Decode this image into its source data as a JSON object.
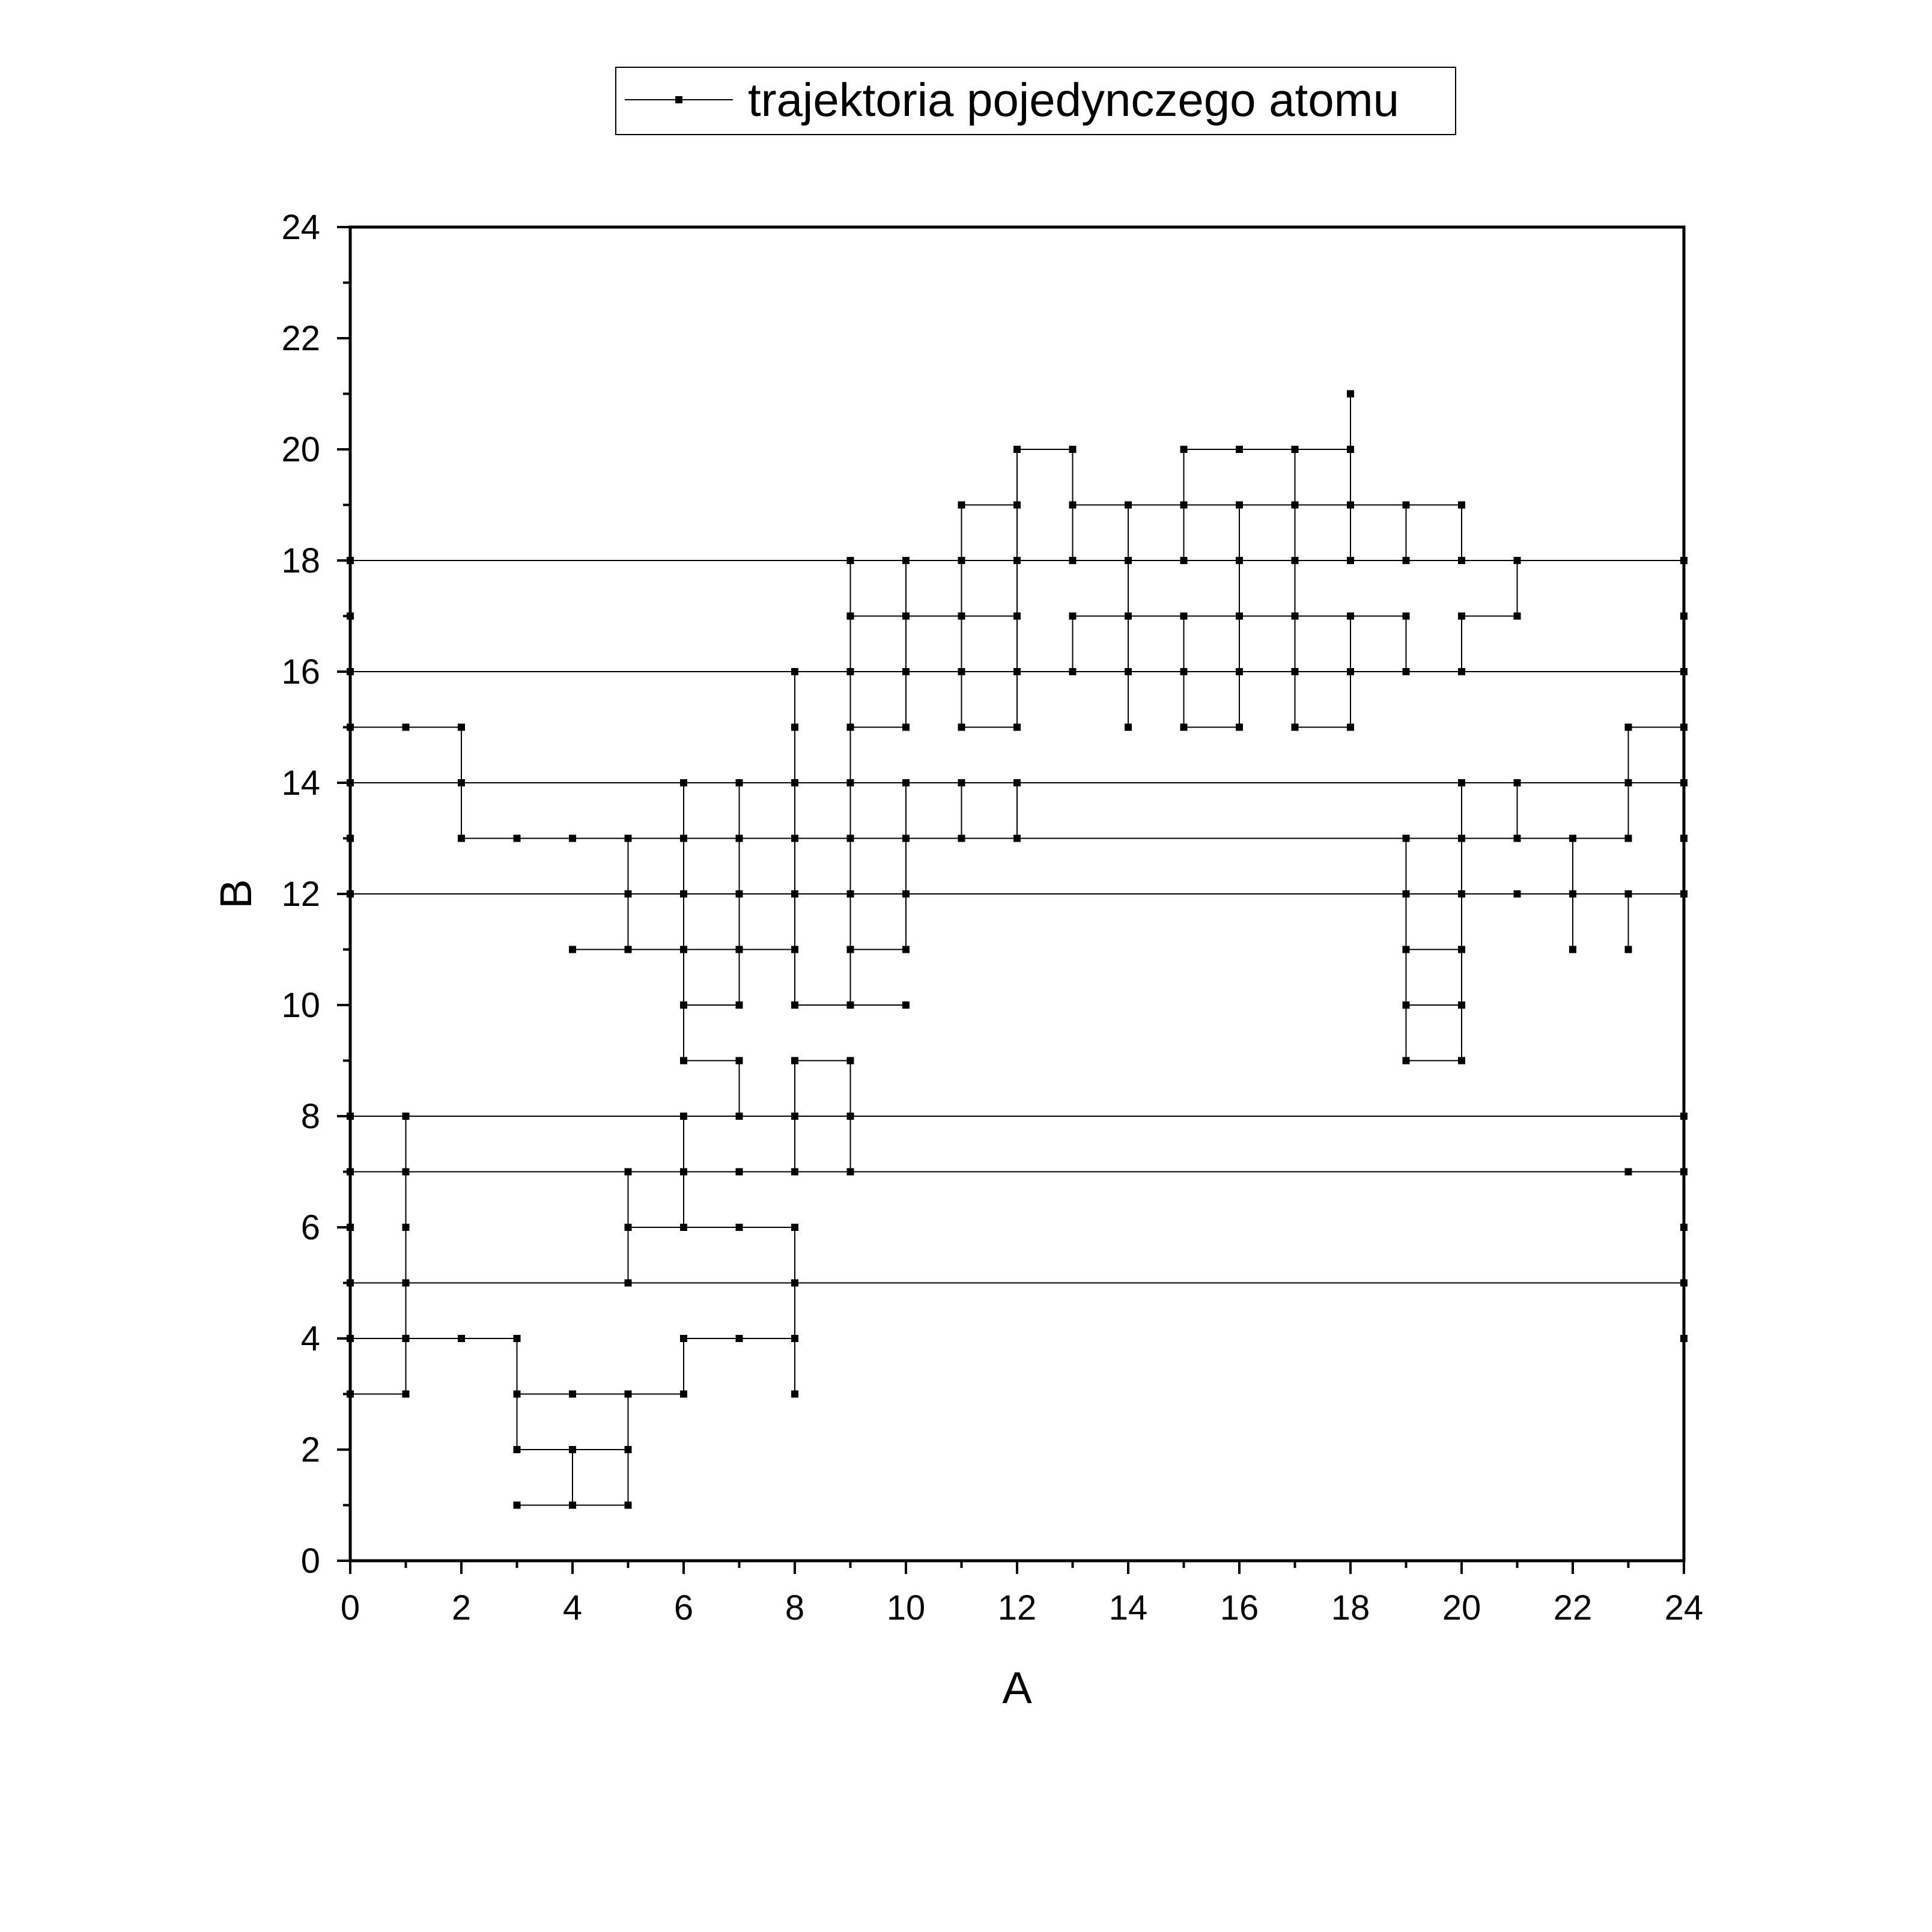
{
  "chart_data": {
    "type": "line",
    "title": "",
    "xlabel": "A",
    "ylabel": "B",
    "xlim": [
      0,
      24
    ],
    "ylim": [
      0,
      24
    ],
    "xticks": [
      "0",
      "2",
      "4",
      "6",
      "8",
      "10",
      "12",
      "14",
      "16",
      "18",
      "20",
      "22",
      "24"
    ],
    "yticks": [
      "0",
      "2",
      "4",
      "6",
      "8",
      "10",
      "12",
      "14",
      "16",
      "18",
      "20",
      "22",
      "24"
    ],
    "grid": false,
    "legend_position": "top",
    "series": [
      {
        "name": "trajektoria pojedynczego atomu",
        "color": "#000000",
        "marker": "square",
        "points": [
          [
            3,
            1
          ],
          [
            4,
            1
          ],
          [
            4,
            2
          ],
          [
            3,
            2
          ],
          [
            3,
            3
          ],
          [
            4,
            3
          ],
          [
            5,
            3
          ],
          [
            5,
            2
          ],
          [
            4,
            2
          ],
          [
            4,
            1
          ],
          [
            5,
            1
          ],
          [
            5,
            2
          ],
          [
            5,
            3
          ],
          [
            6,
            3
          ],
          [
            6,
            4
          ],
          [
            7,
            4
          ],
          [
            8,
            4
          ],
          [
            8,
            3
          ],
          [
            8,
            4
          ],
          [
            8,
            5
          ],
          [
            8,
            6
          ],
          [
            7,
            6
          ],
          [
            6,
            6
          ],
          [
            5,
            6
          ],
          [
            5,
            7
          ],
          [
            5,
            6
          ],
          [
            5,
            5
          ],
          [
            24,
            5
          ],
          [
            24,
            4
          ],
          [
            24,
            5
          ],
          [
            0,
            5
          ],
          [
            0,
            4
          ],
          [
            1,
            4
          ],
          [
            2,
            4
          ],
          [
            3,
            4
          ],
          [
            3,
            3
          ],
          [
            3,
            4
          ],
          [
            2,
            4
          ],
          [
            1,
            4
          ],
          [
            1,
            3
          ],
          [
            0,
            3
          ],
          [
            0,
            4
          ],
          [
            1,
            4
          ],
          [
            1,
            5
          ],
          [
            1,
            6
          ],
          [
            1,
            7
          ],
          [
            0,
            7
          ],
          [
            0,
            6
          ],
          [
            0,
            7
          ],
          [
            1,
            7
          ],
          [
            1,
            8
          ],
          [
            0,
            8
          ],
          [
            24,
            8
          ],
          [
            24,
            7
          ],
          [
            23,
            7
          ],
          [
            24,
            7
          ],
          [
            24,
            6
          ],
          [
            24,
            7
          ],
          [
            0,
            7
          ],
          [
            24,
            7
          ],
          [
            9,
            7
          ],
          [
            9,
            8
          ],
          [
            8,
            8
          ],
          [
            8,
            7
          ],
          [
            7,
            7
          ],
          [
            6,
            7
          ],
          [
            6,
            8
          ],
          [
            6,
            7
          ],
          [
            6,
            6
          ],
          [
            6,
            7
          ],
          [
            9,
            7
          ],
          [
            9,
            8
          ],
          [
            9,
            9
          ],
          [
            8,
            9
          ],
          [
            8,
            8
          ],
          [
            7,
            8
          ],
          [
            7,
            9
          ],
          [
            6,
            9
          ],
          [
            6,
            10
          ],
          [
            6,
            11
          ],
          [
            5,
            11
          ],
          [
            4,
            11
          ],
          [
            5,
            11
          ],
          [
            5,
            12
          ],
          [
            5,
            13
          ],
          [
            4,
            13
          ],
          [
            3,
            13
          ],
          [
            2,
            13
          ],
          [
            2,
            14
          ],
          [
            2,
            15
          ],
          [
            1,
            15
          ],
          [
            0,
            15
          ],
          [
            0,
            14
          ],
          [
            0,
            13
          ],
          [
            0,
            12
          ],
          [
            24,
            12
          ],
          [
            24,
            13
          ],
          [
            24,
            12
          ],
          [
            23,
            12
          ],
          [
            23,
            11
          ],
          [
            23,
            12
          ],
          [
            22,
            12
          ],
          [
            22,
            11
          ],
          [
            22,
            12
          ],
          [
            22,
            13
          ],
          [
            21,
            13
          ],
          [
            20,
            13
          ],
          [
            20,
            12
          ],
          [
            21,
            12
          ],
          [
            20,
            12
          ],
          [
            20,
            11
          ],
          [
            20,
            10
          ],
          [
            20,
            9
          ],
          [
            19,
            9
          ],
          [
            19,
            10
          ],
          [
            20,
            10
          ],
          [
            19,
            10
          ],
          [
            19,
            11
          ],
          [
            20,
            11
          ],
          [
            19,
            11
          ],
          [
            19,
            12
          ],
          [
            19,
            13
          ],
          [
            12,
            13
          ],
          [
            11,
            13
          ],
          [
            11,
            14
          ],
          [
            12,
            14
          ],
          [
            12,
            13
          ],
          [
            12,
            14
          ],
          [
            11,
            14
          ],
          [
            10,
            14
          ],
          [
            10,
            13
          ],
          [
            10,
            12
          ],
          [
            10,
            11
          ],
          [
            9,
            11
          ],
          [
            9,
            10
          ],
          [
            10,
            10
          ],
          [
            9,
            10
          ],
          [
            8,
            10
          ],
          [
            8,
            11
          ],
          [
            7,
            11
          ],
          [
            7,
            10
          ],
          [
            6,
            10
          ],
          [
            7,
            10
          ],
          [
            7,
            11
          ],
          [
            6,
            11
          ],
          [
            6,
            12
          ],
          [
            6,
            13
          ],
          [
            6,
            14
          ],
          [
            7,
            14
          ],
          [
            7,
            13
          ],
          [
            7,
            12
          ],
          [
            7,
            11
          ],
          [
            8,
            11
          ],
          [
            8,
            12
          ],
          [
            7,
            12
          ],
          [
            8,
            12
          ],
          [
            8,
            13
          ],
          [
            8,
            14
          ],
          [
            8,
            15
          ],
          [
            8,
            16
          ],
          [
            9,
            16
          ],
          [
            9,
            15
          ],
          [
            10,
            15
          ],
          [
            10,
            16
          ],
          [
            10,
            17
          ],
          [
            11,
            17
          ],
          [
            11,
            18
          ],
          [
            11,
            19
          ],
          [
            12,
            19
          ],
          [
            12,
            20
          ],
          [
            13,
            20
          ],
          [
            13,
            19
          ],
          [
            14,
            19
          ],
          [
            14,
            18
          ],
          [
            15,
            18
          ],
          [
            15,
            19
          ],
          [
            15,
            20
          ],
          [
            16,
            20
          ],
          [
            17,
            20
          ],
          [
            18,
            20
          ],
          [
            18,
            21
          ],
          [
            18,
            20
          ],
          [
            18,
            19
          ],
          [
            19,
            19
          ],
          [
            20,
            19
          ],
          [
            20,
            18
          ],
          [
            21,
            18
          ],
          [
            21,
            17
          ],
          [
            20,
            17
          ],
          [
            20,
            16
          ],
          [
            19,
            16
          ],
          [
            19,
            17
          ],
          [
            18,
            17
          ],
          [
            18,
            16
          ],
          [
            18,
            15
          ],
          [
            17,
            15
          ],
          [
            17,
            16
          ],
          [
            17,
            17
          ],
          [
            16,
            17
          ],
          [
            16,
            16
          ],
          [
            16,
            15
          ],
          [
            15,
            15
          ],
          [
            15,
            16
          ],
          [
            15,
            17
          ],
          [
            14,
            17
          ],
          [
            14,
            16
          ],
          [
            14,
            15
          ],
          [
            14,
            16
          ],
          [
            13,
            16
          ],
          [
            13,
            17
          ],
          [
            14,
            17
          ],
          [
            14,
            18
          ],
          [
            13,
            18
          ],
          [
            13,
            19
          ],
          [
            14,
            19
          ],
          [
            15,
            19
          ],
          [
            16,
            19
          ],
          [
            16,
            18
          ],
          [
            16,
            17
          ],
          [
            17,
            17
          ],
          [
            17,
            18
          ],
          [
            17,
            19
          ],
          [
            17,
            20
          ],
          [
            17,
            19
          ],
          [
            18,
            19
          ],
          [
            18,
            18
          ],
          [
            19,
            18
          ],
          [
            19,
            19
          ],
          [
            19,
            18
          ],
          [
            20,
            18
          ],
          [
            24,
            18
          ],
          [
            24,
            17
          ],
          [
            24,
            18
          ],
          [
            0,
            18
          ],
          [
            0,
            17
          ],
          [
            0,
            18
          ],
          [
            10,
            18
          ],
          [
            10,
            17
          ],
          [
            9,
            17
          ],
          [
            9,
            18
          ],
          [
            9,
            17
          ],
          [
            9,
            16
          ],
          [
            9,
            15
          ],
          [
            9,
            14
          ],
          [
            9,
            13
          ],
          [
            9,
            12
          ],
          [
            9,
            11
          ],
          [
            9,
            12
          ],
          [
            10,
            12
          ],
          [
            9,
            12
          ],
          [
            9,
            13
          ],
          [
            10,
            13
          ],
          [
            9,
            13
          ],
          [
            8,
            13
          ],
          [
            7,
            13
          ],
          [
            6,
            13
          ],
          [
            5,
            13
          ],
          [
            6,
            13
          ],
          [
            6,
            12
          ],
          [
            5,
            12
          ],
          [
            6,
            12
          ],
          [
            7,
            12
          ],
          [
            8,
            12
          ],
          [
            8,
            13
          ],
          [
            8,
            14
          ],
          [
            9,
            14
          ],
          [
            10,
            14
          ],
          [
            10,
            13
          ],
          [
            12,
            13
          ],
          [
            19,
            13
          ],
          [
            20,
            13
          ],
          [
            20,
            14
          ],
          [
            21,
            14
          ],
          [
            21,
            13
          ],
          [
            23,
            13
          ],
          [
            23,
            14
          ],
          [
            23,
            15
          ],
          [
            24,
            15
          ],
          [
            24,
            14
          ],
          [
            24,
            16
          ],
          [
            24,
            14
          ],
          [
            0,
            14
          ],
          [
            0,
            16
          ],
          [
            24,
            16
          ],
          [
            12,
            16
          ],
          [
            12,
            17
          ],
          [
            11,
            17
          ],
          [
            11,
            16
          ],
          [
            11,
            15
          ],
          [
            12,
            15
          ],
          [
            12,
            16
          ],
          [
            12,
            18
          ],
          [
            12,
            17
          ],
          [
            11,
            17
          ],
          [
            10,
            17
          ],
          [
            10,
            16
          ],
          [
            9,
            16
          ],
          [
            8,
            16
          ],
          [
            11,
            16
          ],
          [
            12,
            16
          ],
          [
            13,
            16
          ],
          [
            16,
            16
          ],
          [
            15,
            16
          ],
          [
            17,
            16
          ],
          [
            18,
            16
          ],
          [
            19,
            16
          ],
          [
            20,
            16
          ],
          [
            16,
            16
          ],
          [
            16,
            17
          ],
          [
            15,
            17
          ],
          [
            17,
            17
          ],
          [
            18,
            17
          ],
          [
            16,
            17
          ],
          [
            16,
            18
          ],
          [
            16,
            19
          ],
          [
            17,
            19
          ],
          [
            18,
            19
          ],
          [
            19,
            19
          ],
          [
            18,
            19
          ],
          [
            18,
            18
          ],
          [
            17,
            18
          ],
          [
            16,
            18
          ],
          [
            15,
            18
          ],
          [
            14,
            18
          ],
          [
            13,
            18
          ],
          [
            12,
            18
          ],
          [
            11,
            18
          ],
          [
            11,
            19
          ],
          [
            12,
            19
          ],
          [
            12,
            18
          ],
          [
            10,
            18
          ],
          [
            10,
            17
          ],
          [
            11,
            17
          ],
          [
            12,
            17
          ],
          [
            12,
            16
          ],
          [
            13,
            16
          ]
        ]
      }
    ]
  }
}
